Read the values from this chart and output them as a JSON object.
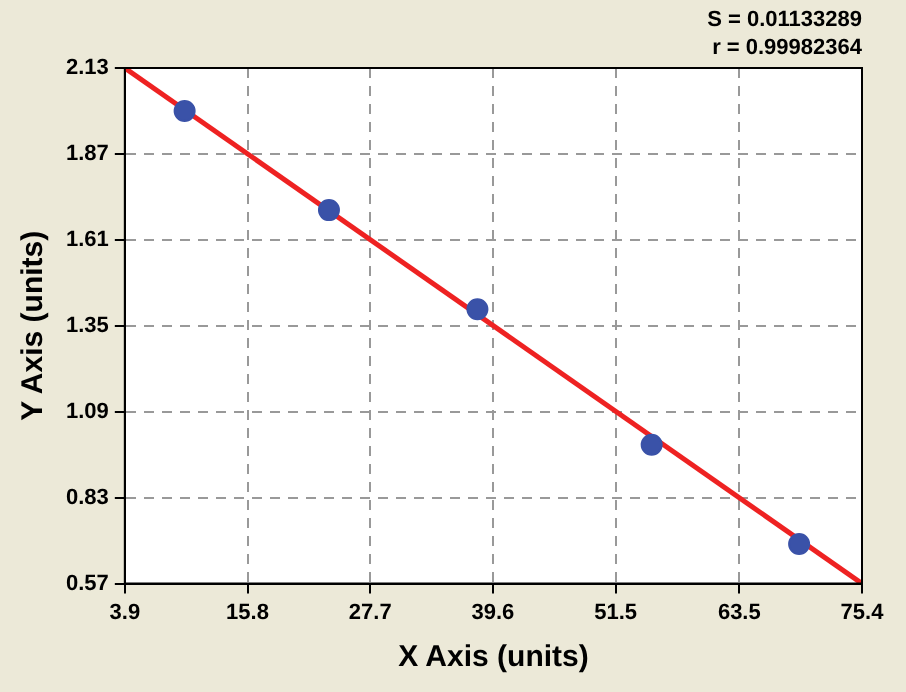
{
  "chart_data": {
    "type": "scatter",
    "xlabel": "X Axis (units)",
    "ylabel": "Y Axis (units)",
    "annotations": [
      "S = 0.01133289",
      "r = 0.99982364"
    ],
    "series": [
      {
        "type": "scatter",
        "color": "#3a52a8",
        "x": [
          9.7,
          23.7,
          38.1,
          55.0,
          69.3
        ],
        "values": [
          2.0,
          1.7,
          1.4,
          0.99,
          0.69
        ],
        "marker": "circle"
      },
      {
        "type": "line",
        "color": "#ee2222",
        "x": [
          3.9,
          75.4
        ],
        "values": [
          2.13,
          0.57
        ],
        "marker": "none",
        "line_style": "solid"
      }
    ],
    "xlim": [
      3.9,
      75.4
    ],
    "xticks": [
      3.9,
      15.8,
      27.7,
      39.6,
      51.5,
      63.5,
      75.4
    ],
    "ylim": [
      0.57,
      2.13
    ],
    "yticks": [
      0.57,
      0.83,
      1.09,
      1.35,
      1.61,
      1.87,
      2.13
    ],
    "grid": true,
    "legend": false
  }
}
